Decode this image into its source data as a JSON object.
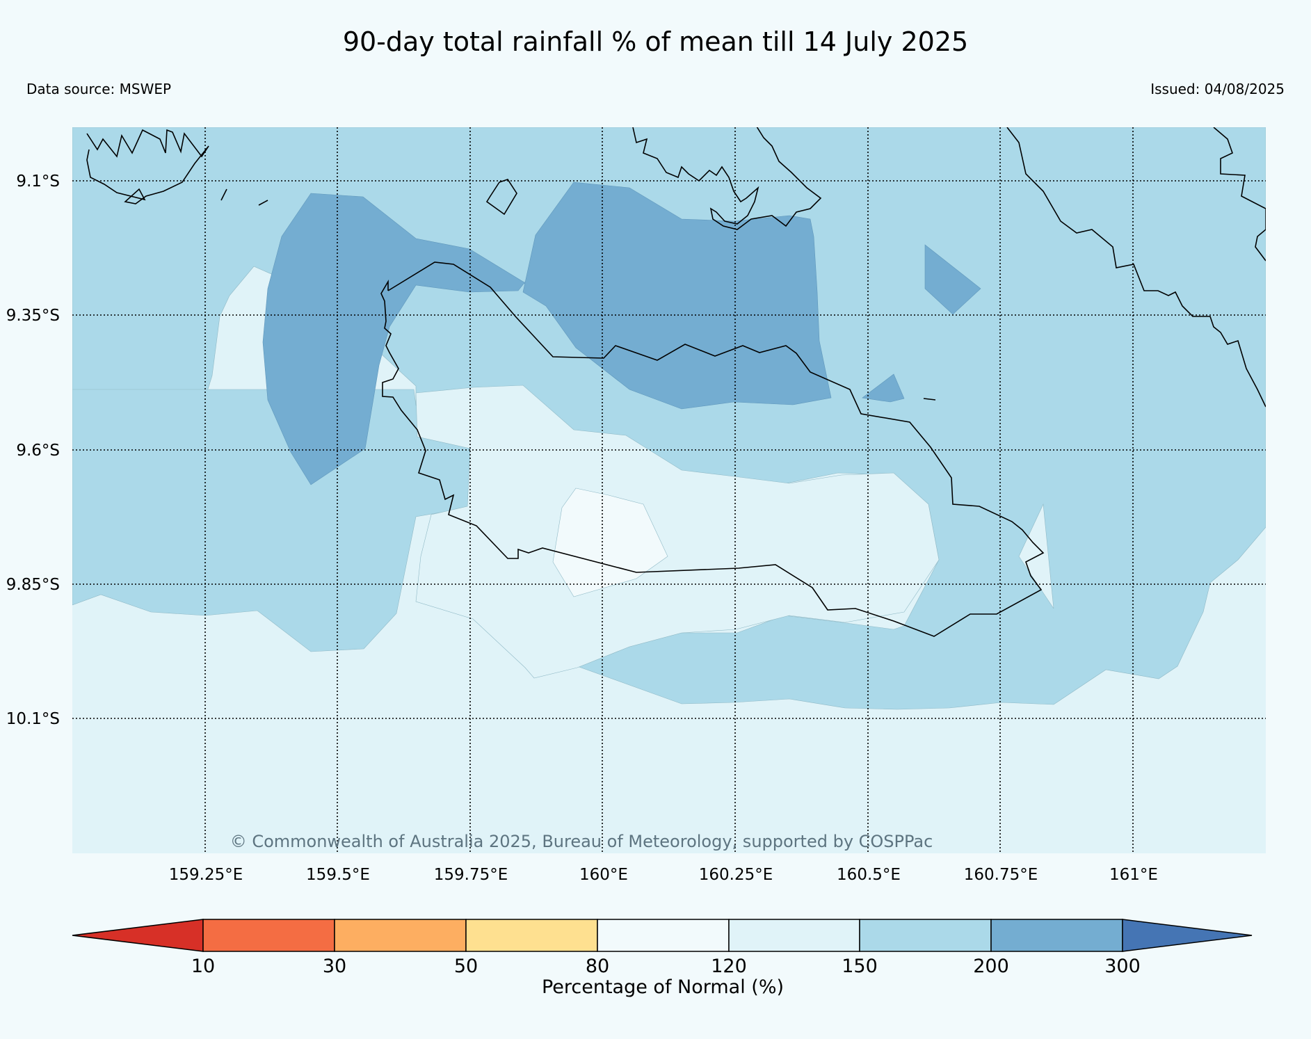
{
  "title": "90-day total rainfall % of mean till 14 July 2025",
  "data_source": "Data source: MSWEP",
  "issued": "Issued: 04/08/2025",
  "copyright": "© Commonwealth of Australia 2025, Bureau of Meteorology, supported by COSPPac",
  "map": {
    "lon_ticks": [
      "159.25°E",
      "159.5°E",
      "159.75°E",
      "160°E",
      "160.25°E",
      "160.5°E",
      "160.75°E",
      "161°E"
    ],
    "lat_ticks": [
      "9.1°S",
      "9.35°S",
      "9.6°S",
      "9.85°S",
      "10.1°S"
    ],
    "lon_values": [
      159.25,
      159.5,
      159.75,
      160.0,
      160.25,
      160.5,
      160.75,
      161.0
    ],
    "lat_values": [
      -9.1,
      -9.35,
      -9.6,
      -9.85,
      -10.1
    ],
    "grid": "dotted"
  },
  "colorbar": {
    "label": "Percentage of Normal (%)",
    "ticks": [
      "10",
      "30",
      "50",
      "80",
      "120",
      "150",
      "200",
      "300"
    ],
    "colors": {
      "below_10": "#d73027",
      "10_30": "#f46d43",
      "30_50": "#fdae61",
      "50_80": "#fee090",
      "80_120": "#f2fafc",
      "120_150": "#e0f3f8",
      "150_200": "#abd9e9",
      "200_300": "#74add1",
      "above_300": "#4575b4"
    }
  }
}
